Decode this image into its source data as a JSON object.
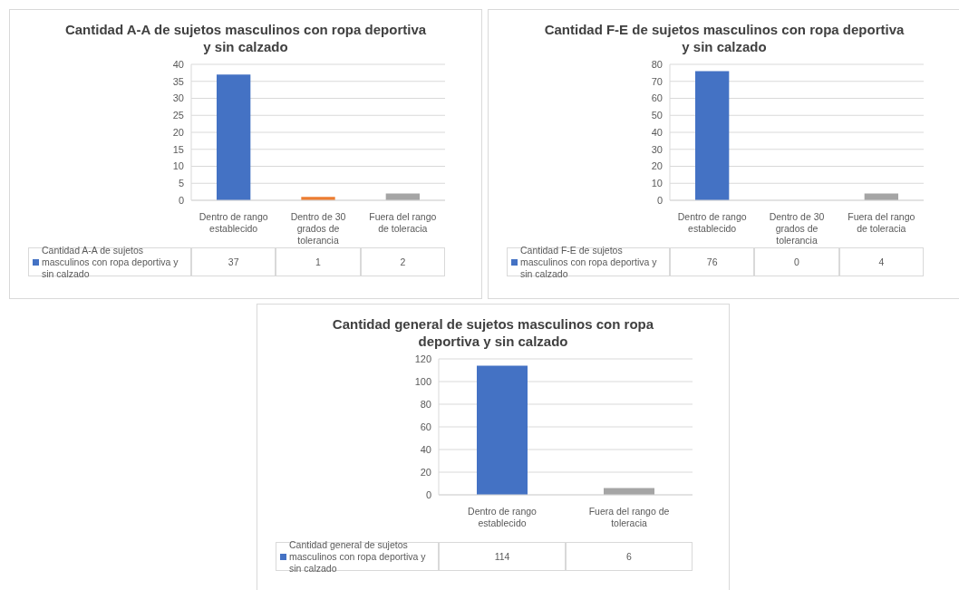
{
  "chart_data": [
    {
      "type": "bar",
      "title": "Cantidad A-A  de sujetos masculinos con ropa deportiva y sin calzado",
      "categories": [
        "Dentro de rango establecido",
        "Dentro de 30 grados de tolerancia",
        "Fuera del rango de toleracia"
      ],
      "series": [
        {
          "name": "Cantidad A-A  de sujetos masculinos con ropa deportiva y sin calzado",
          "color": "#4472c4",
          "colors": [
            "#4472c4",
            "#ed7d31",
            "#a5a5a5"
          ],
          "values": [
            37,
            1,
            2
          ]
        }
      ],
      "ylim": [
        0,
        40
      ],
      "yticks": [
        0,
        5,
        10,
        15,
        20,
        25,
        30,
        35,
        40
      ],
      "grid": "y",
      "legend": "bottom",
      "data_labels": true
    },
    {
      "type": "bar",
      "title": "Cantidad F-E  de sujetos masculinos con ropa deportiva y sin calzado",
      "categories": [
        "Dentro de rango establecido",
        "Dentro de 30 grados de tolerancia",
        "Fuera del rango de toleracia"
      ],
      "series": [
        {
          "name": "Cantidad F-E  de sujetos masculinos con ropa deportiva y sin calzado",
          "color": "#4472c4",
          "colors": [
            "#4472c4",
            "#c55a11",
            "#a5a5a5"
          ],
          "values": [
            76,
            0,
            4
          ]
        }
      ],
      "ylim": [
        0,
        80
      ],
      "yticks": [
        0,
        10,
        20,
        30,
        40,
        50,
        60,
        70,
        80
      ],
      "grid": "y",
      "legend": "bottom",
      "data_labels": true
    },
    {
      "type": "bar",
      "title": "Cantidad general  de sujetos masculinos con ropa deportiva y sin calzado",
      "categories": [
        "Dentro de rango establecido",
        "Fuera del rango de toleracia"
      ],
      "series": [
        {
          "name": "Cantidad general  de sujetos masculinos con ropa deportiva y sin calzado",
          "color": "#4472c4",
          "colors": [
            "#4472c4",
            "#a5a5a5"
          ],
          "values": [
            114,
            6
          ]
        }
      ],
      "ylim": [
        0,
        120
      ],
      "yticks": [
        0,
        20,
        40,
        60,
        80,
        100,
        120
      ],
      "grid": "y",
      "legend": "bottom",
      "data_labels": true
    }
  ]
}
